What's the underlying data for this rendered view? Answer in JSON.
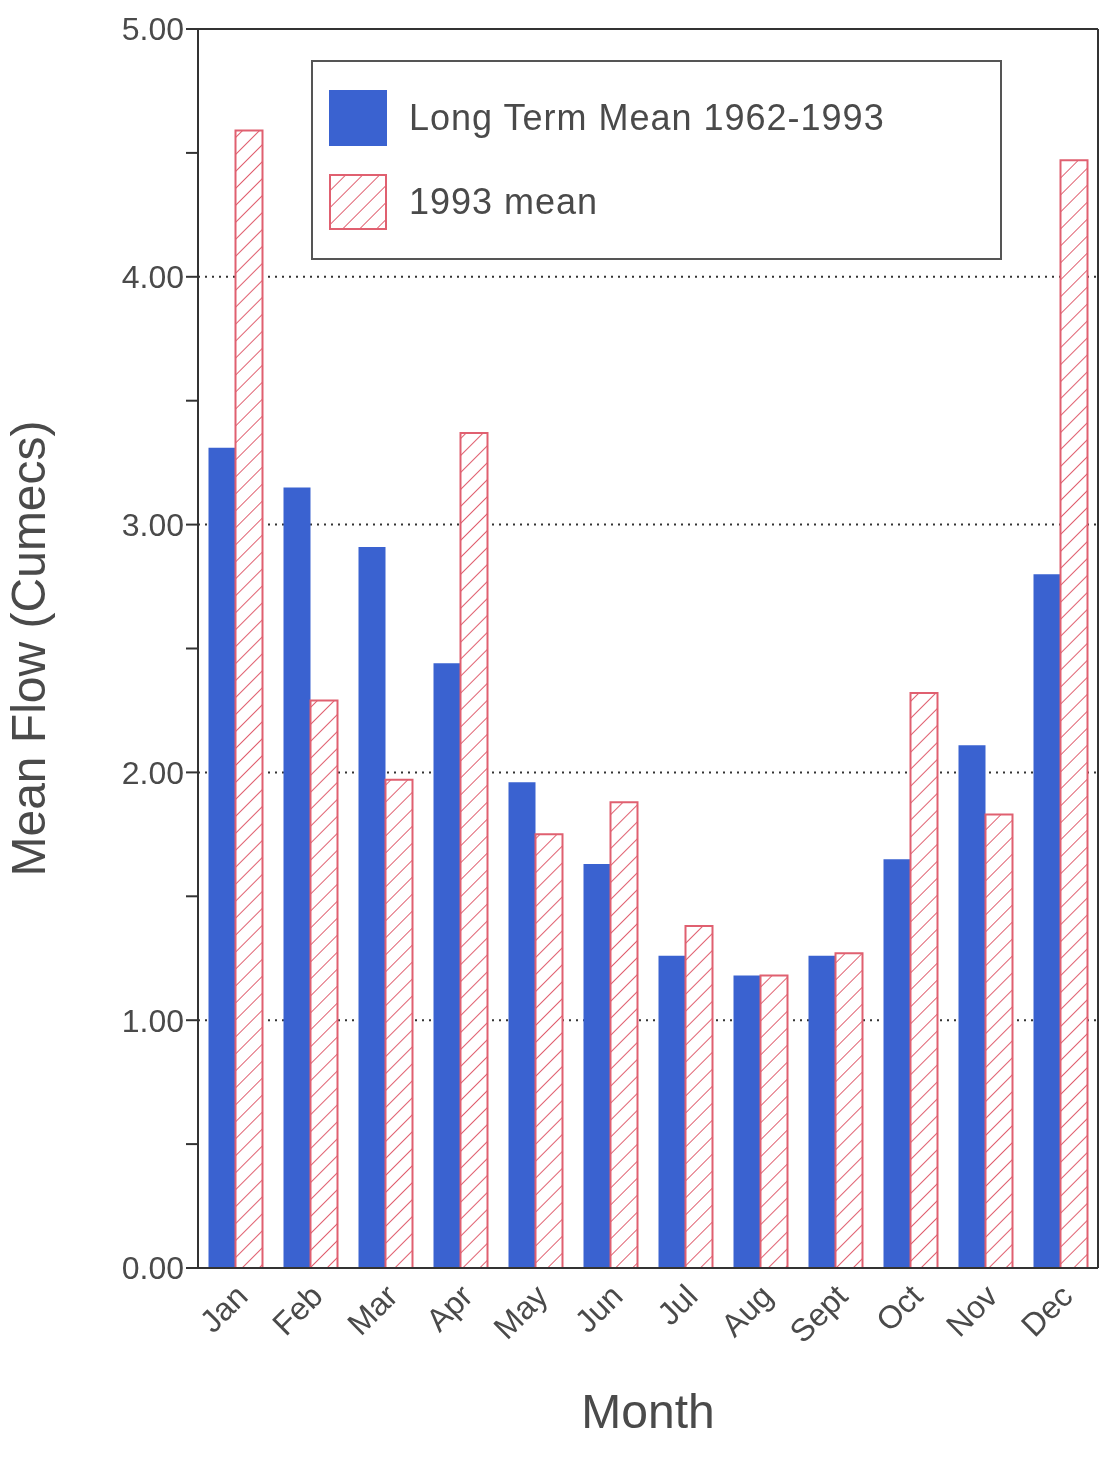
{
  "chart_data": {
    "type": "bar",
    "xlabel": "Month",
    "ylabel": "Mean Flow (Cumecs)",
    "categories": [
      "Jan",
      "Feb",
      "Mar",
      "Apr",
      "May",
      "Jun",
      "Jul",
      "Aug",
      "Sept",
      "Oct",
      "Nov",
      "Dec"
    ],
    "series": [
      {
        "name": "Long Term Mean 1962-1993",
        "color": "#3a62d0",
        "values": [
          3.31,
          3.15,
          2.91,
          2.44,
          1.96,
          1.63,
          1.26,
          1.18,
          1.26,
          1.65,
          2.11,
          2.8
        ]
      },
      {
        "name": "1993 mean",
        "color": "#e06070",
        "values": [
          4.59,
          2.29,
          1.97,
          3.37,
          1.75,
          1.88,
          1.38,
          1.18,
          1.27,
          2.32,
          1.83,
          4.47
        ]
      }
    ],
    "ylim": [
      0,
      5
    ],
    "yticks": [
      "0.00",
      {
        "value": 0.5,
        "label": null
      },
      {
        "value": 1,
        "label": "1.00"
      },
      {
        "value": 1.5,
        "label": null
      },
      {
        "value": 2,
        "label": "2.00"
      },
      {
        "value": 2.5,
        "label": null
      },
      {
        "value": 3,
        "label": "3.00"
      },
      {
        "value": 3.5,
        "label": null
      },
      {
        "value": 4,
        "label": "4.00"
      },
      {
        "value": 4.5,
        "label": null
      },
      {
        "value": 5,
        "label": "5.00"
      }
    ],
    "grid": "y",
    "legend": "top"
  }
}
